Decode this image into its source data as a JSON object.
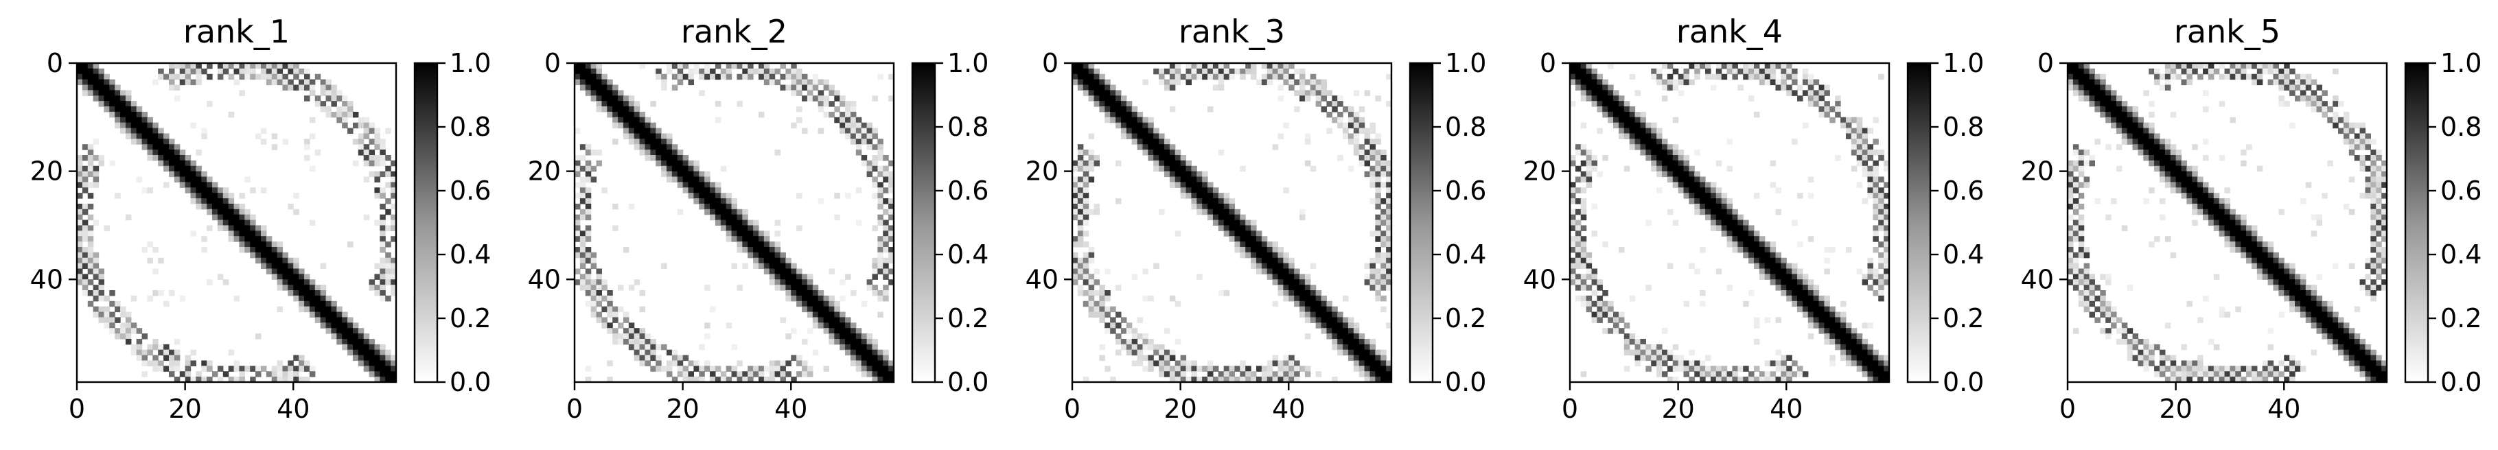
{
  "chart_data": [
    {
      "type": "heatmap",
      "title": "rank_1",
      "n": 59,
      "colormap": "Greys",
      "xlim": [
        0,
        58
      ],
      "ylim": [
        58,
        0
      ],
      "xticks": [
        0,
        20,
        40
      ],
      "yticks": [
        0,
        20,
        40
      ],
      "colorbar": {
        "min": 0.0,
        "max": 1.0,
        "ticks": [
          "0.0",
          "0.2",
          "0.4",
          "0.6",
          "0.8",
          "1.0"
        ]
      },
      "pattern": {
        "diagonal_width": 2,
        "kink_at": [
          [
            24,
            22
          ],
          [
            44,
            40
          ]
        ],
        "arc_band_value": 0.6,
        "arc_seed": 1
      }
    },
    {
      "type": "heatmap",
      "title": "rank_2",
      "n": 59,
      "colormap": "Greys",
      "xlim": [
        0,
        58
      ],
      "ylim": [
        58,
        0
      ],
      "xticks": [
        0,
        20,
        40
      ],
      "yticks": [
        0,
        20,
        40
      ],
      "colorbar": {
        "min": 0.0,
        "max": 1.0,
        "ticks": [
          "0.0",
          "0.2",
          "0.4",
          "0.6",
          "0.8",
          "1.0"
        ]
      },
      "pattern": {
        "diagonal_width": 2,
        "kink_at": [
          [
            24,
            22
          ],
          [
            44,
            40
          ]
        ],
        "arc_band_value": 0.6,
        "arc_seed": 2
      }
    },
    {
      "type": "heatmap",
      "title": "rank_3",
      "n": 59,
      "colormap": "Greys",
      "xlim": [
        0,
        58
      ],
      "ylim": [
        58,
        0
      ],
      "xticks": [
        0,
        20,
        40
      ],
      "yticks": [
        0,
        20,
        40
      ],
      "colorbar": {
        "min": 0.0,
        "max": 1.0,
        "ticks": [
          "0.0",
          "0.2",
          "0.4",
          "0.6",
          "0.8",
          "1.0"
        ]
      },
      "pattern": {
        "diagonal_width": 2,
        "kink_at": [
          [
            24,
            22
          ],
          [
            44,
            40
          ]
        ],
        "arc_band_value": 0.6,
        "arc_seed": 3
      }
    },
    {
      "type": "heatmap",
      "title": "rank_4",
      "n": 59,
      "colormap": "Greys",
      "xlim": [
        0,
        58
      ],
      "ylim": [
        58,
        0
      ],
      "xticks": [
        0,
        20,
        40
      ],
      "yticks": [
        0,
        20,
        40
      ],
      "colorbar": {
        "min": 0.0,
        "max": 1.0,
        "ticks": [
          "0.0",
          "0.2",
          "0.4",
          "0.6",
          "0.8",
          "1.0"
        ]
      },
      "pattern": {
        "diagonal_width": 2,
        "kink_at": [
          [
            24,
            22
          ],
          [
            44,
            40
          ]
        ],
        "arc_band_value": 0.6,
        "arc_seed": 4
      }
    },
    {
      "type": "heatmap",
      "title": "rank_5",
      "n": 59,
      "colormap": "Greys",
      "xlim": [
        0,
        58
      ],
      "ylim": [
        58,
        0
      ],
      "xticks": [
        0,
        20,
        40
      ],
      "yticks": [
        0,
        20,
        40
      ],
      "colorbar": {
        "min": 0.0,
        "max": 1.0,
        "ticks": [
          "0.0",
          "0.2",
          "0.4",
          "0.6",
          "0.8",
          "1.0"
        ]
      },
      "pattern": {
        "diagonal_width": 2,
        "kink_at": [
          [
            24,
            22
          ],
          [
            44,
            40
          ]
        ],
        "arc_band_value": 0.6,
        "arc_seed": 5
      }
    }
  ]
}
